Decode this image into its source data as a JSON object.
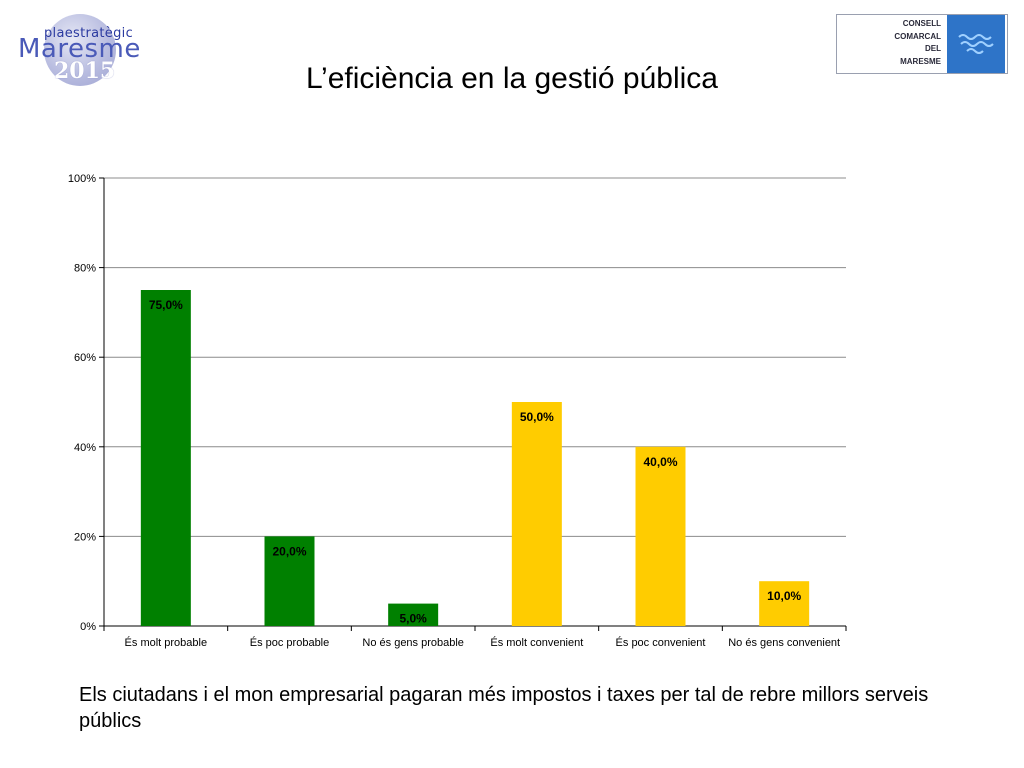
{
  "logos": {
    "left": {
      "line1": "plaestratègic",
      "line2": "Maresme",
      "line3": "2015"
    },
    "right": {
      "lines": [
        "CONSELL",
        "COMARCAL",
        "DEL",
        "MARESME"
      ],
      "box_color": "#2e74c8"
    }
  },
  "title": "L’eficiència en la gestió pública",
  "chart_data": {
    "type": "bar",
    "categories": [
      "És molt probable",
      "És poc probable",
      "No és gens probable",
      "És molt convenient",
      "És poc convenient",
      "No és gens convenient"
    ],
    "values": [
      75.0,
      20.0,
      5.0,
      50.0,
      40.0,
      10.0
    ],
    "data_labels": [
      "75,0%",
      "20,0%",
      "5,0%",
      "50,0%",
      "40,0%",
      "10,0%"
    ],
    "bar_colors": [
      "#008000",
      "#008000",
      "#008000",
      "#ffcc00",
      "#ffcc00",
      "#ffcc00"
    ],
    "ylim": [
      0,
      100
    ],
    "yticks": [
      0,
      20,
      40,
      60,
      80,
      100
    ],
    "ytick_labels": [
      "0%",
      "20%",
      "40%",
      "60%",
      "80%",
      "100%"
    ],
    "grid": true,
    "legend": "none"
  },
  "caption": "Els ciutadans i el mon empresarial pagaran més impostos i taxes per tal de rebre millors serveis públics"
}
